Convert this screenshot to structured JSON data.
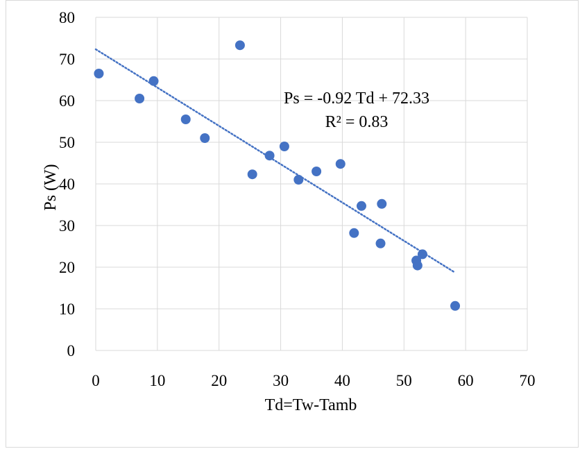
{
  "chart_data": {
    "type": "scatter",
    "xlabel": "Td=Tw-Tamb",
    "ylabel": "Ps (W)",
    "xlim": [
      0,
      70
    ],
    "ylim": [
      0,
      80
    ],
    "x_ticks": [
      "0",
      "10",
      "20",
      "30",
      "40",
      "50",
      "60",
      "70"
    ],
    "y_ticks": [
      "0",
      "10",
      "20",
      "30",
      "40",
      "50",
      "60",
      "70",
      "80"
    ],
    "grid": true,
    "legend": "none",
    "series": [
      {
        "marker_color": "#4472c4",
        "points": [
          {
            "x": 0.5,
            "y": 66.5
          },
          {
            "x": 7.1,
            "y": 60.5
          },
          {
            "x": 9.4,
            "y": 64.7
          },
          {
            "x": 14.6,
            "y": 55.5
          },
          {
            "x": 17.7,
            "y": 51.0
          },
          {
            "x": 23.4,
            "y": 73.3
          },
          {
            "x": 25.4,
            "y": 42.3
          },
          {
            "x": 28.2,
            "y": 46.8
          },
          {
            "x": 30.6,
            "y": 49.0
          },
          {
            "x": 32.9,
            "y": 41.0
          },
          {
            "x": 35.8,
            "y": 43.0
          },
          {
            "x": 39.7,
            "y": 44.8
          },
          {
            "x": 41.9,
            "y": 28.2
          },
          {
            "x": 43.1,
            "y": 34.7
          },
          {
            "x": 46.2,
            "y": 25.7
          },
          {
            "x": 46.4,
            "y": 35.2
          },
          {
            "x": 52.0,
            "y": 21.6
          },
          {
            "x": 52.2,
            "y": 20.4
          },
          {
            "x": 53.0,
            "y": 23.1
          },
          {
            "x": 58.3,
            "y": 10.7
          }
        ]
      }
    ],
    "trendline": {
      "style": "dotted",
      "color": "#4472c4",
      "slope": -0.92,
      "intercept": 72.33,
      "x_start": 0,
      "x_end": 58.3
    },
    "annotation": {
      "equation": "Ps = -0.92 Td + 72.33",
      "r_squared": "R² = 0.83"
    }
  },
  "colors": {
    "grid": "#d9d9d9",
    "marker": "#4472c4",
    "frame_border": "#d9d9d9"
  }
}
